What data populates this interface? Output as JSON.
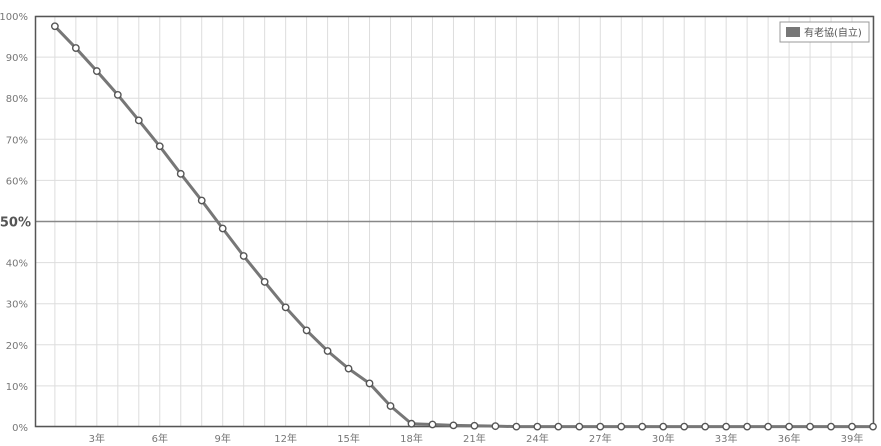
{
  "chart_data": {
    "type": "line",
    "title": "",
    "xlabel": "",
    "ylabel": "",
    "x": [
      1,
      2,
      3,
      4,
      5,
      6,
      7,
      8,
      9,
      10,
      11,
      12,
      13,
      14,
      15,
      16,
      17,
      18,
      19,
      20,
      21,
      22,
      23,
      24,
      25,
      26,
      27,
      28,
      29,
      30,
      31,
      32,
      33,
      34,
      35,
      36,
      37,
      38,
      39,
      40
    ],
    "xlim": [
      1,
      40
    ],
    "ylim": [
      0,
      100
    ],
    "y_ticks": [
      {
        "value": 0,
        "label": "0%"
      },
      {
        "value": 10,
        "label": "10%"
      },
      {
        "value": 20,
        "label": "20%"
      },
      {
        "value": 30,
        "label": "30%"
      },
      {
        "value": 40,
        "label": "40%"
      },
      {
        "value": 50,
        "label": "50%"
      },
      {
        "value": 60,
        "label": "60%"
      },
      {
        "value": 70,
        "label": "70%"
      },
      {
        "value": 80,
        "label": "80%"
      },
      {
        "value": 90,
        "label": "90%"
      },
      {
        "value": 100,
        "label": "100%"
      }
    ],
    "x_ticks": [
      {
        "value": 3,
        "label": "3年"
      },
      {
        "value": 6,
        "label": "6年"
      },
      {
        "value": 9,
        "label": "9年"
      },
      {
        "value": 12,
        "label": "12年"
      },
      {
        "value": 15,
        "label": "15年"
      },
      {
        "value": 18,
        "label": "18年"
      },
      {
        "value": 21,
        "label": "21年"
      },
      {
        "value": 24,
        "label": "24年"
      },
      {
        "value": 27,
        "label": "27年"
      },
      {
        "value": 30,
        "label": "30年"
      },
      {
        "value": 33,
        "label": "33年"
      },
      {
        "value": 36,
        "label": "36年"
      },
      {
        "value": 39,
        "label": "39年"
      }
    ],
    "reference_line": {
      "value": 50,
      "color": "#888888"
    },
    "grid": true,
    "legend_position": "top-right",
    "series": [
      {
        "name": "有老協(自立)",
        "color": "#777777",
        "marker_fill": "#ffffff",
        "values": [
          97.5,
          92.2,
          86.6,
          80.8,
          74.6,
          68.3,
          61.6,
          55.1,
          48.3,
          41.6,
          35.3,
          29.1,
          23.5,
          18.5,
          14.2,
          10.6,
          5.1,
          0.8,
          0.6,
          0.4,
          0.3,
          0.2,
          0.1,
          0.1,
          0.1,
          0.1,
          0.1,
          0.1,
          0.1,
          0.1,
          0.1,
          0.1,
          0.1,
          0.1,
          0.1,
          0.1,
          0.1,
          0.1,
          0.1,
          0.1
        ]
      }
    ]
  }
}
